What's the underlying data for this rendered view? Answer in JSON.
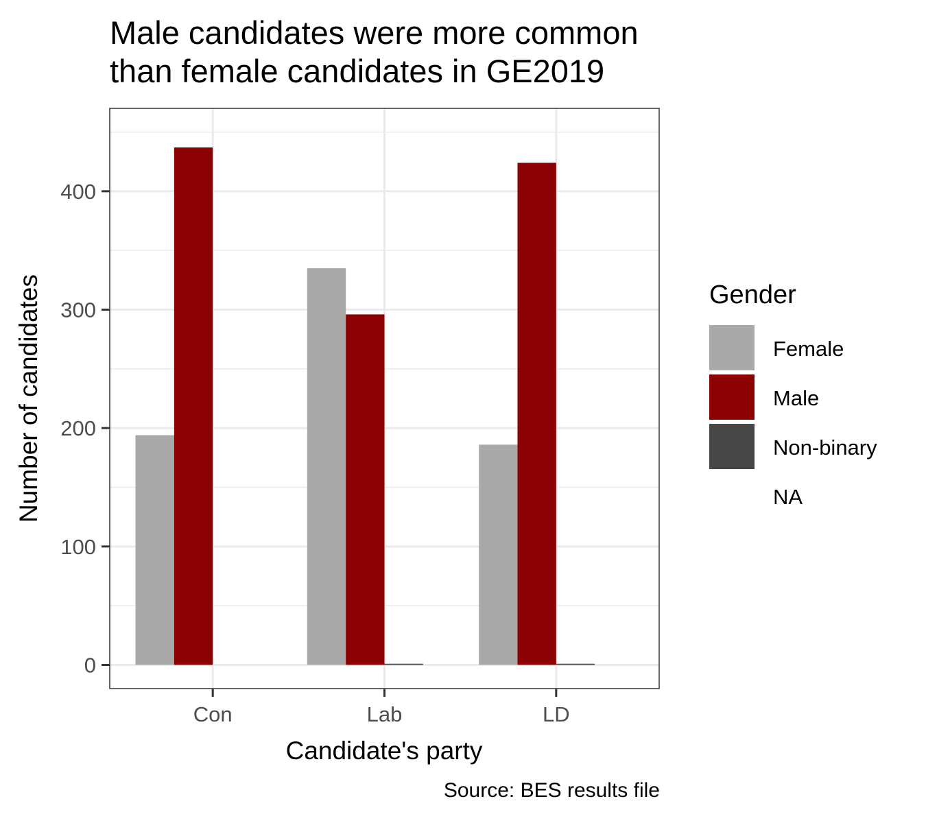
{
  "chart_data": {
    "type": "bar",
    "title_lines": [
      "Male candidates were more common",
      "than female candidates in GE2019"
    ],
    "xlabel": "Candidate's party",
    "ylabel": "Number of candidates",
    "caption": "Source: BES results file",
    "categories": [
      "Con",
      "Lab",
      "LD"
    ],
    "ylim": [
      -20,
      470
    ],
    "yticks": [
      0,
      100,
      200,
      300,
      400
    ],
    "grid": true,
    "legend": {
      "title": "Gender",
      "placement": "right",
      "entries": [
        "Female",
        "Male",
        "Non-binary",
        "NA"
      ]
    },
    "series": [
      {
        "name": "Female",
        "color": "#A9A9A9",
        "values": [
          194,
          335,
          186
        ]
      },
      {
        "name": "Male",
        "color": "#8B0000",
        "values": [
          437,
          296,
          424
        ]
      },
      {
        "name": "Non-binary",
        "color": "#474747",
        "values": [
          null,
          1,
          1
        ]
      },
      {
        "name": "NA",
        "color": "#ffffff",
        "values": [
          null,
          null,
          null
        ]
      }
    ]
  }
}
